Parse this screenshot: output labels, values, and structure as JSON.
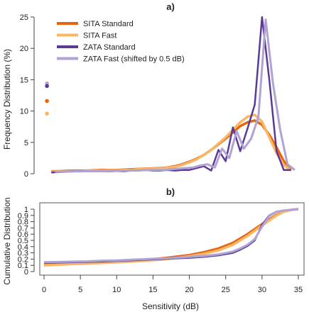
{
  "chart_data": [
    {
      "panel": "a)",
      "type": "line",
      "xlabel": "",
      "ylabel": "Frequency Distribution (%)",
      "xlim": [
        0,
        35
      ],
      "ylim": [
        0,
        25
      ],
      "yticks": [
        0,
        5,
        10,
        15,
        20,
        25
      ],
      "legend": "top-left",
      "grid": false,
      "left_points": [
        {
          "series": "ZATA Fast (shifted by 0.5 dB)",
          "x": 0.4,
          "y": 14.4
        },
        {
          "series": "ZATA Standard",
          "x": 0.4,
          "y": 14.0
        },
        {
          "series": "SITA Standard",
          "x": 0.4,
          "y": 11.6
        },
        {
          "series": "SITA Fast",
          "x": 0.4,
          "y": 9.6
        }
      ],
      "series": [
        {
          "name": "SITA Standard",
          "color": "#e8650f",
          "width": 3.5,
          "x": [
            1,
            2,
            3,
            4,
            5,
            6,
            7,
            8,
            9,
            10,
            11,
            12,
            13,
            14,
            15,
            16,
            17,
            18,
            19,
            20,
            21,
            22,
            23,
            24,
            25,
            26,
            27,
            28,
            29,
            30,
            31,
            32,
            33,
            34
          ],
          "y": [
            0.4,
            0.4,
            0.45,
            0.5,
            0.5,
            0.5,
            0.55,
            0.6,
            0.6,
            0.6,
            0.65,
            0.7,
            0.75,
            0.8,
            0.85,
            0.9,
            1.0,
            1.2,
            1.5,
            1.9,
            2.4,
            3.0,
            3.8,
            4.7,
            5.6,
            6.6,
            7.6,
            8.2,
            8.5,
            7.8,
            6.2,
            4.2,
            2.0,
            0.7
          ]
        },
        {
          "name": "SITA Fast",
          "color": "#f7b767",
          "width": 3.5,
          "x": [
            1,
            2,
            3,
            4,
            5,
            6,
            7,
            8,
            9,
            10,
            11,
            12,
            13,
            14,
            15,
            16,
            17,
            18,
            19,
            20,
            21,
            22,
            23,
            24,
            25,
            26,
            27,
            28,
            29,
            30,
            31,
            32,
            33,
            34
          ],
          "y": [
            0.3,
            0.35,
            0.35,
            0.4,
            0.4,
            0.45,
            0.5,
            0.5,
            0.55,
            0.55,
            0.6,
            0.6,
            0.7,
            0.75,
            0.8,
            0.85,
            0.95,
            1.1,
            1.4,
            1.8,
            2.3,
            3.0,
            3.8,
            4.8,
            5.8,
            7.0,
            8.2,
            9.1,
            9.4,
            8.3,
            5.8,
            3.3,
            1.4,
            0.5
          ]
        },
        {
          "name": "ZATA Standard",
          "color": "#5b3a96",
          "width": 2.5,
          "x": [
            1,
            2,
            3,
            4,
            5,
            6,
            7,
            8,
            9,
            10,
            11,
            12,
            13,
            14,
            15,
            16,
            17,
            18,
            19,
            20,
            21,
            22,
            23,
            24,
            25,
            26,
            27,
            28,
            29,
            30,
            31,
            32,
            33,
            34
          ],
          "y": [
            0.2,
            0.25,
            0.3,
            0.4,
            0.4,
            0.4,
            0.4,
            0.4,
            0.4,
            0.45,
            0.4,
            0.5,
            0.5,
            0.6,
            0.5,
            0.5,
            0.6,
            0.5,
            0.6,
            0.6,
            0.9,
            1.2,
            0.5,
            3.8,
            2.0,
            7.4,
            3.6,
            7.2,
            11.0,
            25.0,
            15.0,
            3.6,
            0.6,
            0.6
          ]
        },
        {
          "name": "ZATA Fast (shifted by 0.5 dB)",
          "color": "#b0a3d4",
          "width": 3,
          "x": [
            1.5,
            2.5,
            3.5,
            4.5,
            5.5,
            6.5,
            7.5,
            8.5,
            9.5,
            10.5,
            11.5,
            12.5,
            13.5,
            14.5,
            15.5,
            16.5,
            17.5,
            18.5,
            19.5,
            20.5,
            21.5,
            22.5,
            23.5,
            24.5,
            25.5,
            26.5,
            27.5,
            28.5,
            29.5,
            30.5,
            31.5,
            32.5,
            33.5,
            34.5
          ],
          "y": [
            0.3,
            0.3,
            0.35,
            0.4,
            0.4,
            0.4,
            0.45,
            0.45,
            0.5,
            0.5,
            0.5,
            0.5,
            0.55,
            0.6,
            0.6,
            0.6,
            0.7,
            0.8,
            0.9,
            1.0,
            1.3,
            1.5,
            1.0,
            4.0,
            2.5,
            6.8,
            4.0,
            5.6,
            9.0,
            24.6,
            14.5,
            7.0,
            1.5,
            0.6
          ]
        }
      ]
    },
    {
      "panel": "b)",
      "type": "line",
      "xlabel": "Sensitivity (dB)",
      "ylabel": "Cumulative Distribution",
      "xlim": [
        0,
        35
      ],
      "ylim": [
        0,
        1
      ],
      "xticks": [
        0,
        5,
        10,
        15,
        20,
        25,
        30,
        35
      ],
      "yticks": [
        0,
        0.1,
        0.2,
        0.3,
        0.4,
        0.5,
        0.6,
        0.7,
        0.8,
        0.9,
        1
      ],
      "ytick_labels": [
        "0",
        "0.1",
        "0.2",
        "0.3",
        "0.4",
        "0.5",
        "0.6",
        "0.7",
        "0.8",
        "0.9",
        "1"
      ],
      "grid": false,
      "series": [
        {
          "name": "SITA Standard",
          "color": "#e8650f",
          "width": 3.5,
          "x": [
            0,
            2,
            4,
            6,
            8,
            10,
            12,
            14,
            16,
            18,
            20,
            22,
            24,
            26,
            28,
            30,
            32,
            33,
            34,
            35
          ],
          "y": [
            0.12,
            0.13,
            0.135,
            0.145,
            0.155,
            0.165,
            0.175,
            0.19,
            0.21,
            0.235,
            0.265,
            0.31,
            0.37,
            0.46,
            0.6,
            0.76,
            0.91,
            0.96,
            0.99,
            1.0
          ]
        },
        {
          "name": "SITA Fast",
          "color": "#f7b767",
          "width": 3.5,
          "x": [
            0,
            2,
            4,
            6,
            8,
            10,
            12,
            14,
            16,
            18,
            20,
            22,
            24,
            26,
            28,
            30,
            32,
            33,
            34,
            35
          ],
          "y": [
            0.1,
            0.11,
            0.12,
            0.13,
            0.14,
            0.15,
            0.16,
            0.175,
            0.19,
            0.215,
            0.245,
            0.285,
            0.34,
            0.43,
            0.57,
            0.74,
            0.9,
            0.96,
            0.99,
            1.0
          ]
        },
        {
          "name": "ZATA Standard",
          "color": "#5b3a96",
          "width": 2.5,
          "x": [
            0,
            2,
            4,
            6,
            8,
            10,
            12,
            14,
            16,
            18,
            20,
            22,
            24,
            26,
            27,
            28,
            29,
            30,
            31,
            32,
            33,
            34,
            35
          ],
          "y": [
            0.14,
            0.145,
            0.15,
            0.155,
            0.16,
            0.17,
            0.18,
            0.19,
            0.2,
            0.21,
            0.22,
            0.235,
            0.26,
            0.3,
            0.35,
            0.41,
            0.5,
            0.75,
            0.9,
            0.96,
            0.98,
            0.99,
            1.0
          ]
        },
        {
          "name": "ZATA Fast (shifted by 0.5 dB)",
          "color": "#b0a3d4",
          "width": 3,
          "x": [
            0,
            2,
            4,
            6,
            8,
            10,
            12,
            14,
            16,
            18,
            20,
            22,
            24,
            26,
            27,
            28,
            29,
            30,
            31,
            32,
            33,
            34,
            35
          ],
          "y": [
            0.15,
            0.155,
            0.16,
            0.165,
            0.175,
            0.18,
            0.19,
            0.2,
            0.21,
            0.22,
            0.235,
            0.25,
            0.275,
            0.32,
            0.37,
            0.43,
            0.52,
            0.72,
            0.89,
            0.96,
            0.98,
            0.99,
            1.0
          ]
        }
      ]
    }
  ]
}
